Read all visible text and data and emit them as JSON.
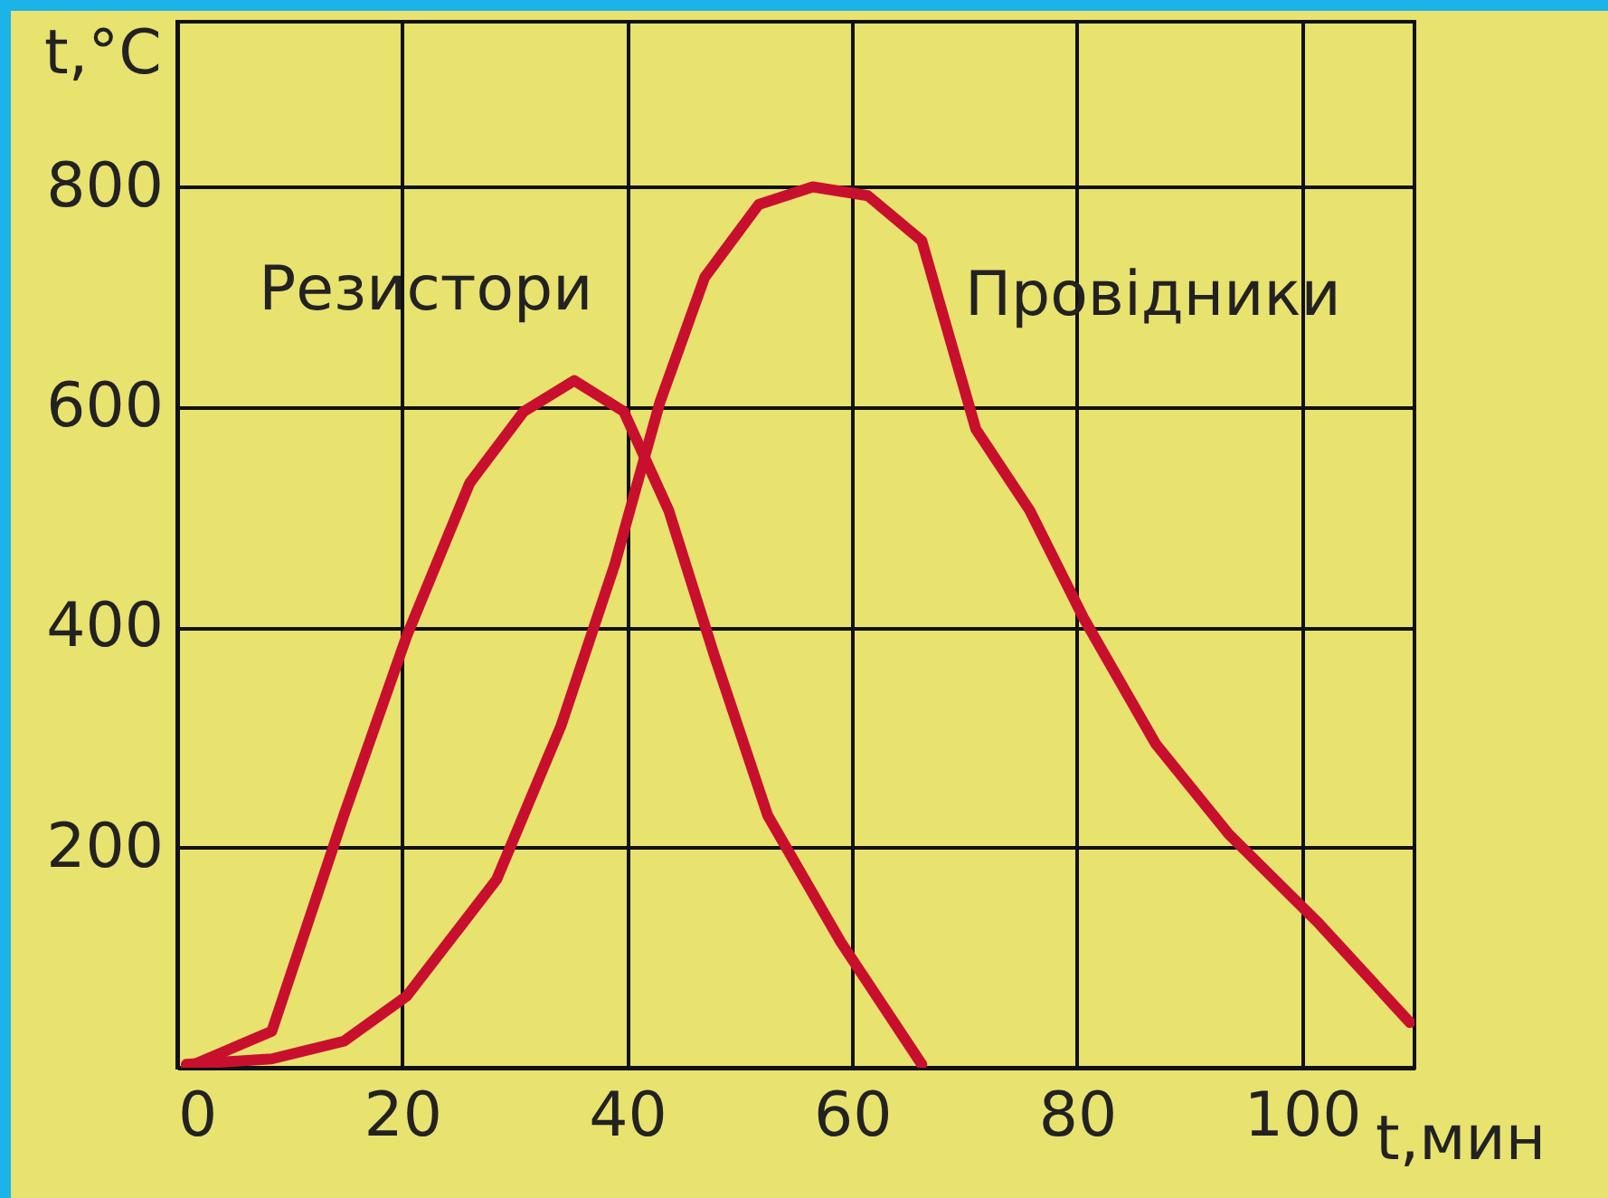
{
  "chart_data": {
    "type": "line",
    "xlabel": "t,мин",
    "ylabel": "t,°C",
    "xlim": [
      0,
      110
    ],
    "ylim": [
      0,
      950
    ],
    "xticks": [
      0,
      20,
      40,
      60,
      80,
      100
    ],
    "yticks": [
      {
        "value": 0,
        "label": null
      },
      200,
      400,
      600,
      800
    ],
    "grid": true,
    "marker": "none",
    "line_style": "solid",
    "series": [
      {
        "name": "Резистори",
        "color": "#c8102e",
        "x": [
          0.8,
          8.4,
          14.8,
          20.4,
          26,
          30.8,
          35.3,
          39.7,
          43.7,
          47.7,
          52.5,
          59,
          66.2
        ],
        "values": [
          0,
          33,
          229,
          392,
          531,
          596,
          624,
          596,
          506,
          376,
          229,
          114,
          3
        ]
      },
      {
        "name": "Провідники",
        "color": "#c8102e",
        "x": [
          0.8,
          8.4,
          14.8,
          20.4,
          28.4,
          34.1,
          38.9,
          42.9,
          46.9,
          51.7,
          56.5,
          61.4,
          66.2,
          71,
          75.8,
          80.6,
          87,
          93.5,
          101.5,
          109.6
        ],
        "values": [
          3,
          8,
          24,
          65,
          171,
          310,
          457,
          604,
          718,
          784,
          800,
          792,
          751,
          580,
          506,
          408,
          294,
          212,
          131,
          41
        ]
      }
    ]
  }
}
